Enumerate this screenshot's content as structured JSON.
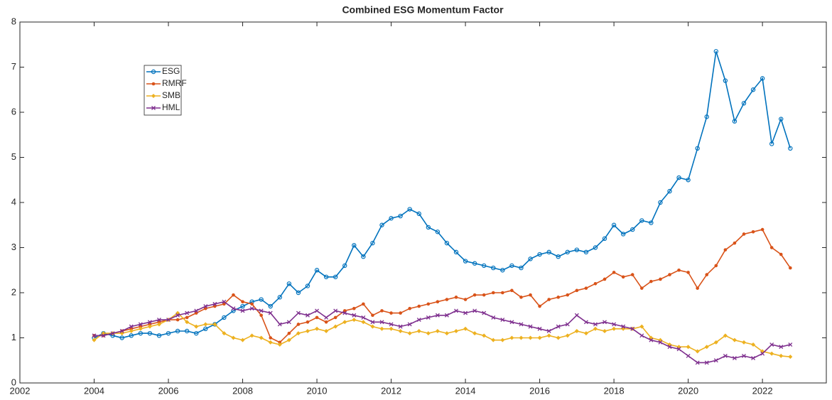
{
  "chart_data": {
    "type": "line",
    "title": "Combined ESG Momentum Factor",
    "x": [
      2004,
      2004.25,
      2004.5,
      2004.75,
      2005,
      2005.25,
      2005.5,
      2005.75,
      2006,
      2006.25,
      2006.5,
      2006.75,
      2007,
      2007.25,
      2007.5,
      2007.75,
      2008,
      2008.25,
      2008.5,
      2008.75,
      2009,
      2009.25,
      2009.5,
      2009.75,
      2010,
      2010.25,
      2010.5,
      2010.75,
      2011,
      2011.25,
      2011.5,
      2011.75,
      2012,
      2012.25,
      2012.5,
      2012.75,
      2013,
      2013.25,
      2013.5,
      2013.75,
      2014,
      2014.25,
      2014.5,
      2014.75,
      2015,
      2015.25,
      2015.5,
      2015.75,
      2016,
      2016.25,
      2016.5,
      2016.75,
      2017,
      2017.25,
      2017.5,
      2017.75,
      2018,
      2018.25,
      2018.5,
      2018.75,
      2019,
      2019.25,
      2019.5,
      2019.75,
      2020,
      2020.25,
      2020.5,
      2020.75,
      2021,
      2021.25,
      2021.5,
      2021.75,
      2022,
      2022.25,
      2022.5,
      2022.75
    ],
    "series": [
      {
        "name": "ESG",
        "color": "#0072BD",
        "marker": "circle",
        "values": [
          1.0,
          1.1,
          1.05,
          1.0,
          1.05,
          1.1,
          1.1,
          1.05,
          1.1,
          1.15,
          1.15,
          1.1,
          1.2,
          1.3,
          1.45,
          1.6,
          1.7,
          1.8,
          1.85,
          1.7,
          1.9,
          2.2,
          2.0,
          2.15,
          2.5,
          2.35,
          2.35,
          2.6,
          3.05,
          2.8,
          3.1,
          3.5,
          3.65,
          3.7,
          3.85,
          3.75,
          3.45,
          3.35,
          3.1,
          2.9,
          2.7,
          2.65,
          2.6,
          2.55,
          2.5,
          2.6,
          2.55,
          2.75,
          2.85,
          2.9,
          2.8,
          2.9,
          2.95,
          2.9,
          3.0,
          3.2,
          3.5,
          3.3,
          3.4,
          3.6,
          3.55,
          4.0,
          4.25,
          4.55,
          4.5,
          5.2,
          5.9,
          7.35,
          6.7,
          5.8,
          6.2,
          6.5,
          6.75,
          5.3,
          5.85,
          5.2
        ]
      },
      {
        "name": "RMRF",
        "color": "#D95319",
        "marker": "dot",
        "values": [
          1.05,
          1.05,
          1.1,
          1.15,
          1.2,
          1.25,
          1.3,
          1.35,
          1.4,
          1.4,
          1.45,
          1.55,
          1.65,
          1.7,
          1.75,
          1.95,
          1.8,
          1.75,
          1.5,
          1.0,
          0.9,
          1.1,
          1.3,
          1.35,
          1.45,
          1.35,
          1.45,
          1.6,
          1.65,
          1.75,
          1.5,
          1.6,
          1.55,
          1.55,
          1.65,
          1.7,
          1.75,
          1.8,
          1.85,
          1.9,
          1.85,
          1.95,
          1.95,
          2.0,
          2.0,
          2.05,
          1.9,
          1.95,
          1.7,
          1.85,
          1.9,
          1.95,
          2.05,
          2.1,
          2.2,
          2.3,
          2.45,
          2.35,
          2.4,
          2.1,
          2.25,
          2.3,
          2.4,
          2.5,
          2.45,
          2.1,
          2.4,
          2.6,
          2.95,
          3.1,
          3.3,
          3.35,
          3.4,
          3.0,
          2.85,
          2.55
        ]
      },
      {
        "name": "SMB",
        "color": "#EDB120",
        "marker": "diamond",
        "values": [
          0.95,
          1.1,
          1.1,
          1.1,
          1.15,
          1.2,
          1.25,
          1.3,
          1.4,
          1.55,
          1.35,
          1.25,
          1.3,
          1.3,
          1.1,
          1.0,
          0.95,
          1.05,
          1.0,
          0.9,
          0.85,
          0.95,
          1.1,
          1.15,
          1.2,
          1.15,
          1.25,
          1.35,
          1.4,
          1.35,
          1.25,
          1.2,
          1.2,
          1.15,
          1.1,
          1.15,
          1.1,
          1.15,
          1.1,
          1.15,
          1.2,
          1.1,
          1.05,
          0.95,
          0.95,
          1.0,
          1.0,
          1.0,
          1.0,
          1.05,
          1.0,
          1.05,
          1.15,
          1.1,
          1.2,
          1.15,
          1.2,
          1.2,
          1.2,
          1.25,
          1.0,
          0.95,
          0.85,
          0.8,
          0.8,
          0.7,
          0.8,
          0.9,
          1.05,
          0.95,
          0.9,
          0.85,
          0.7,
          0.65,
          0.6,
          0.58
        ]
      },
      {
        "name": "HML",
        "color": "#7E2F8E",
        "marker": "x",
        "values": [
          1.05,
          1.05,
          1.1,
          1.15,
          1.25,
          1.3,
          1.35,
          1.4,
          1.4,
          1.5,
          1.55,
          1.6,
          1.7,
          1.75,
          1.8,
          1.65,
          1.6,
          1.65,
          1.6,
          1.55,
          1.3,
          1.35,
          1.55,
          1.5,
          1.6,
          1.45,
          1.6,
          1.55,
          1.5,
          1.45,
          1.35,
          1.35,
          1.3,
          1.25,
          1.3,
          1.4,
          1.45,
          1.5,
          1.5,
          1.6,
          1.55,
          1.6,
          1.55,
          1.45,
          1.4,
          1.35,
          1.3,
          1.25,
          1.2,
          1.15,
          1.25,
          1.3,
          1.5,
          1.35,
          1.3,
          1.35,
          1.3,
          1.25,
          1.2,
          1.05,
          0.95,
          0.9,
          0.8,
          0.75,
          0.6,
          0.45,
          0.45,
          0.5,
          0.6,
          0.55,
          0.6,
          0.55,
          0.65,
          0.85,
          0.8,
          0.85
        ]
      }
    ],
    "xlim": [
      2002,
      2023.72
    ],
    "xticks": [
      2002,
      2004,
      2006,
      2008,
      2010,
      2012,
      2014,
      2016,
      2018,
      2020,
      2022
    ],
    "ylim": [
      0,
      8
    ],
    "yticks": [
      0,
      1,
      2,
      3,
      4,
      5,
      6,
      7,
      8
    ],
    "legend": "northwest"
  }
}
